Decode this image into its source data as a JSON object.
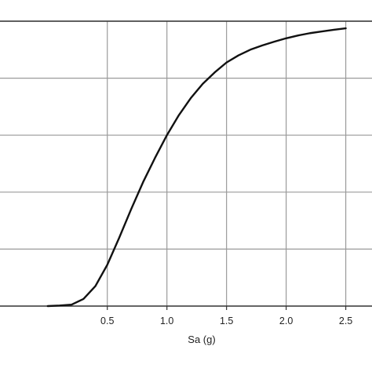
{
  "chart_data": {
    "type": "line",
    "title": "",
    "xlabel": "Sa (g)",
    "ylabel": "",
    "xlim": [
      -0.4,
      2.72
    ],
    "ylim": [
      0,
      1.0
    ],
    "grid": true,
    "legend": "none",
    "x_ticks": [
      "0.5",
      "1.0",
      "1.5",
      "2.0",
      "2.5"
    ],
    "x_tick_values": [
      0.5,
      1.0,
      1.5,
      2.0,
      2.5
    ],
    "y_grid_values": [
      0.2,
      0.4,
      0.6,
      0.8,
      1.0
    ],
    "series": [
      {
        "color": "#111111",
        "x": [
          0.0,
          0.1,
          0.2,
          0.3,
          0.4,
          0.5,
          0.6,
          0.7,
          0.8,
          0.9,
          1.0,
          1.1,
          1.2,
          1.3,
          1.4,
          1.5,
          1.6,
          1.7,
          1.8,
          1.9,
          2.0,
          2.1,
          2.2,
          2.3,
          2.4,
          2.5
        ],
        "y": [
          0.0,
          0.002,
          0.005,
          0.025,
          0.07,
          0.145,
          0.24,
          0.34,
          0.435,
          0.52,
          0.6,
          0.67,
          0.73,
          0.78,
          0.82,
          0.855,
          0.88,
          0.9,
          0.915,
          0.928,
          0.94,
          0.95,
          0.958,
          0.964,
          0.97,
          0.975
        ]
      }
    ]
  },
  "colors": {
    "grid": "#9a9a9a",
    "axis": "#333333",
    "line": "#111111"
  }
}
